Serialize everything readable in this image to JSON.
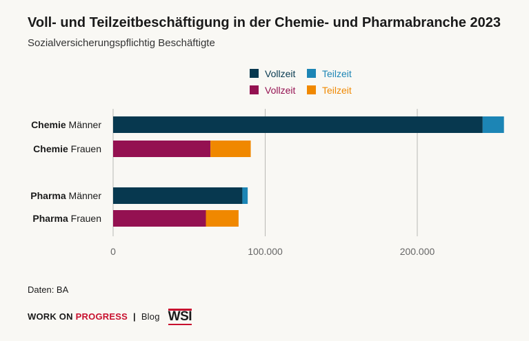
{
  "header": {
    "title": "Voll- und Teilzeitbeschäftigung in der Chemie- und Pharmabranche 2023",
    "subtitle": "Sozialversicherungspflichtig Beschäftigte"
  },
  "chart_data": {
    "type": "bar",
    "orientation": "horizontal",
    "stacked": true,
    "rows": [
      {
        "bold": "Chemie",
        "rest": " Männer",
        "segments": [
          {
            "name": "Vollzeit",
            "value": 243000,
            "color": "#07384f"
          },
          {
            "name": "Teilzeit",
            "value": 14000,
            "color": "#1c85b5"
          }
        ]
      },
      {
        "bold": "Chemie",
        "rest": " Frauen",
        "segments": [
          {
            "name": "Vollzeit",
            "value": 64000,
            "color": "#941151"
          },
          {
            "name": "Teilzeit",
            "value": 26500,
            "color": "#f08800"
          }
        ]
      },
      {
        "bold": "Pharma",
        "rest": " Männer",
        "segments": [
          {
            "name": "Vollzeit",
            "value": 85000,
            "color": "#07384f"
          },
          {
            "name": "Teilzeit",
            "value": 3500,
            "color": "#1c85b5"
          }
        ]
      },
      {
        "bold": "Pharma",
        "rest": " Frauen",
        "segments": [
          {
            "name": "Vollzeit",
            "value": 61000,
            "color": "#941151"
          },
          {
            "name": "Teilzeit",
            "value": 21500,
            "color": "#f08800"
          }
        ]
      }
    ],
    "xticks": [
      {
        "value": 0,
        "label": "0"
      },
      {
        "value": 100000,
        "label": "100.000"
      },
      {
        "value": 200000,
        "label": "200.000"
      }
    ],
    "xlim": [
      0,
      260000
    ],
    "grid": true,
    "legend": [
      {
        "label": "Vollzeit",
        "color": "#07384f"
      },
      {
        "label": "Teilzeit",
        "color": "#1c85b5"
      },
      {
        "label": "Vollzeit",
        "color": "#941151"
      },
      {
        "label": "Teilzeit",
        "color": "#f08800"
      }
    ]
  },
  "source": "Daten: BA",
  "footer": {
    "brand_a": "WORK ON",
    "brand_b": "PROGRESS",
    "separator": "|",
    "blog": "Blog",
    "logo": "WSI"
  },
  "colors": {
    "background": "#f9f8f4",
    "grid": "#b8b8b4",
    "brand_red": "#c8102e"
  }
}
